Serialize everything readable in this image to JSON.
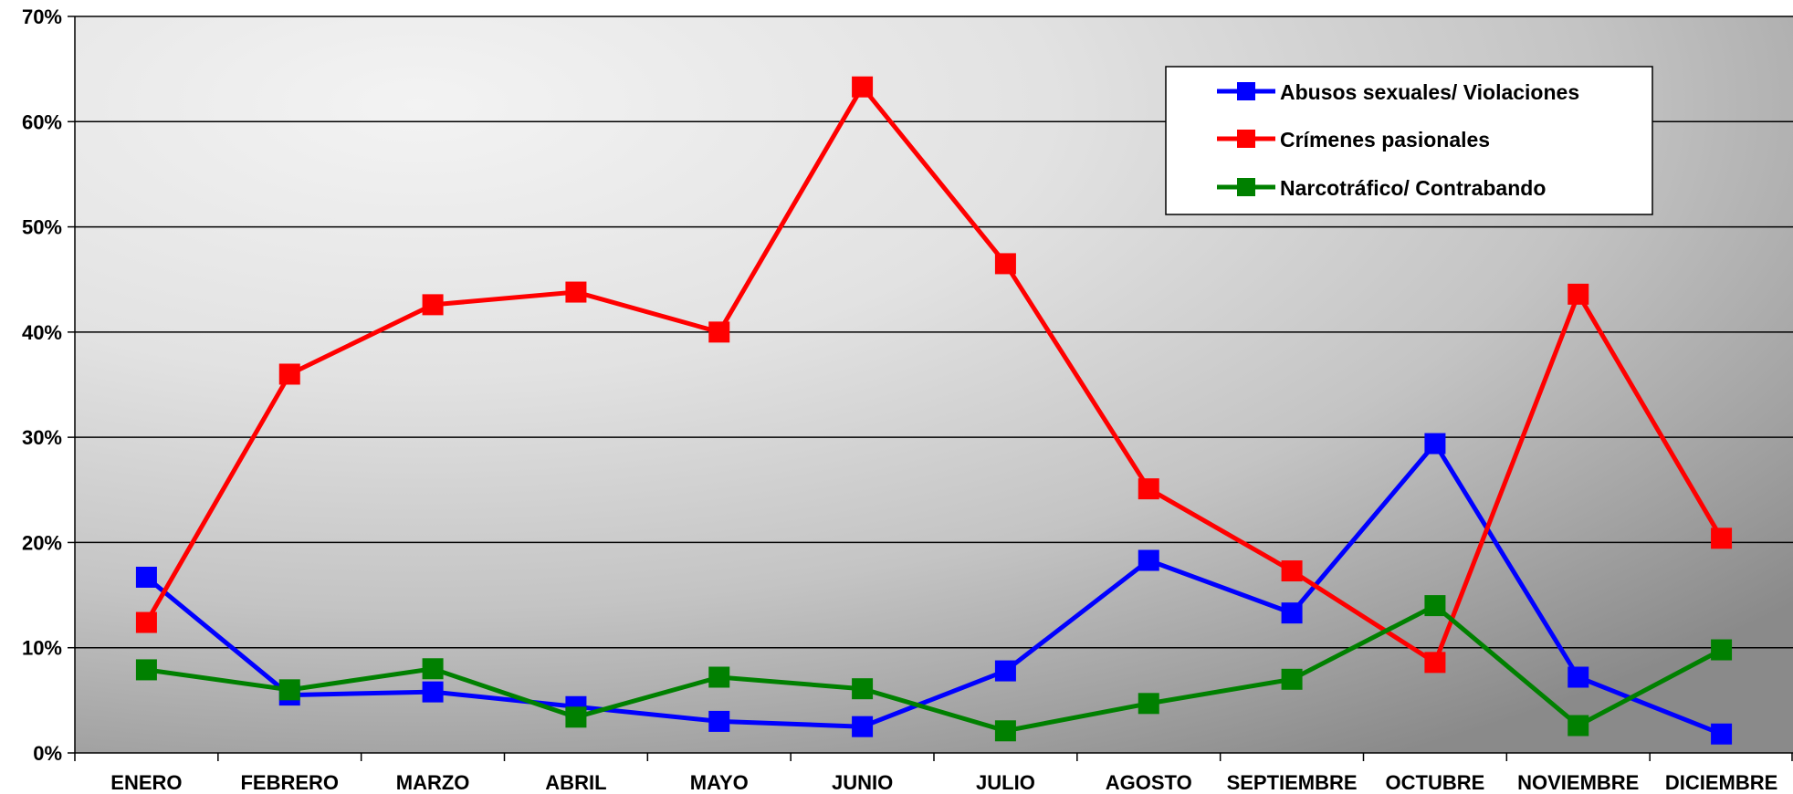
{
  "chart_data": {
    "type": "line",
    "title": "",
    "xlabel": "",
    "ylabel": "",
    "categories": [
      "ENERO",
      "FEBRERO",
      "MARZO",
      "ABRIL",
      "MAYO",
      "JUNIO",
      "JULIO",
      "AGOSTO",
      "SEPTIEMBRE",
      "OCTUBRE",
      "NOVIEMBRE",
      "DICIEMBRE"
    ],
    "ylim": [
      0,
      70
    ],
    "yticks": [
      0,
      10,
      20,
      30,
      40,
      50,
      60,
      70
    ],
    "ytick_labels": [
      "0%",
      "10%",
      "20%",
      "30%",
      "40%",
      "50%",
      "60%",
      "70%"
    ],
    "grid": true,
    "legend_position": "top-right",
    "series": [
      {
        "name": "Abusos sexuales/ Violaciones",
        "color": "#0000ff",
        "marker": "square",
        "values": [
          16.7,
          5.5,
          5.8,
          4.4,
          3.0,
          2.5,
          7.8,
          18.3,
          13.3,
          29.4,
          7.2,
          1.8
        ]
      },
      {
        "name": "Crímenes pasionales",
        "color": "#ff0000",
        "marker": "square",
        "values": [
          12.4,
          36.0,
          42.6,
          43.8,
          40.0,
          63.3,
          46.5,
          25.1,
          17.3,
          8.6,
          43.6,
          20.4
        ]
      },
      {
        "name": "Narcotráfico/ Contrabando",
        "color": "#008000",
        "marker": "square",
        "values": [
          7.9,
          6.0,
          8.0,
          3.4,
          7.2,
          6.1,
          2.1,
          4.7,
          7.0,
          14.0,
          2.6,
          9.8
        ]
      }
    ]
  }
}
